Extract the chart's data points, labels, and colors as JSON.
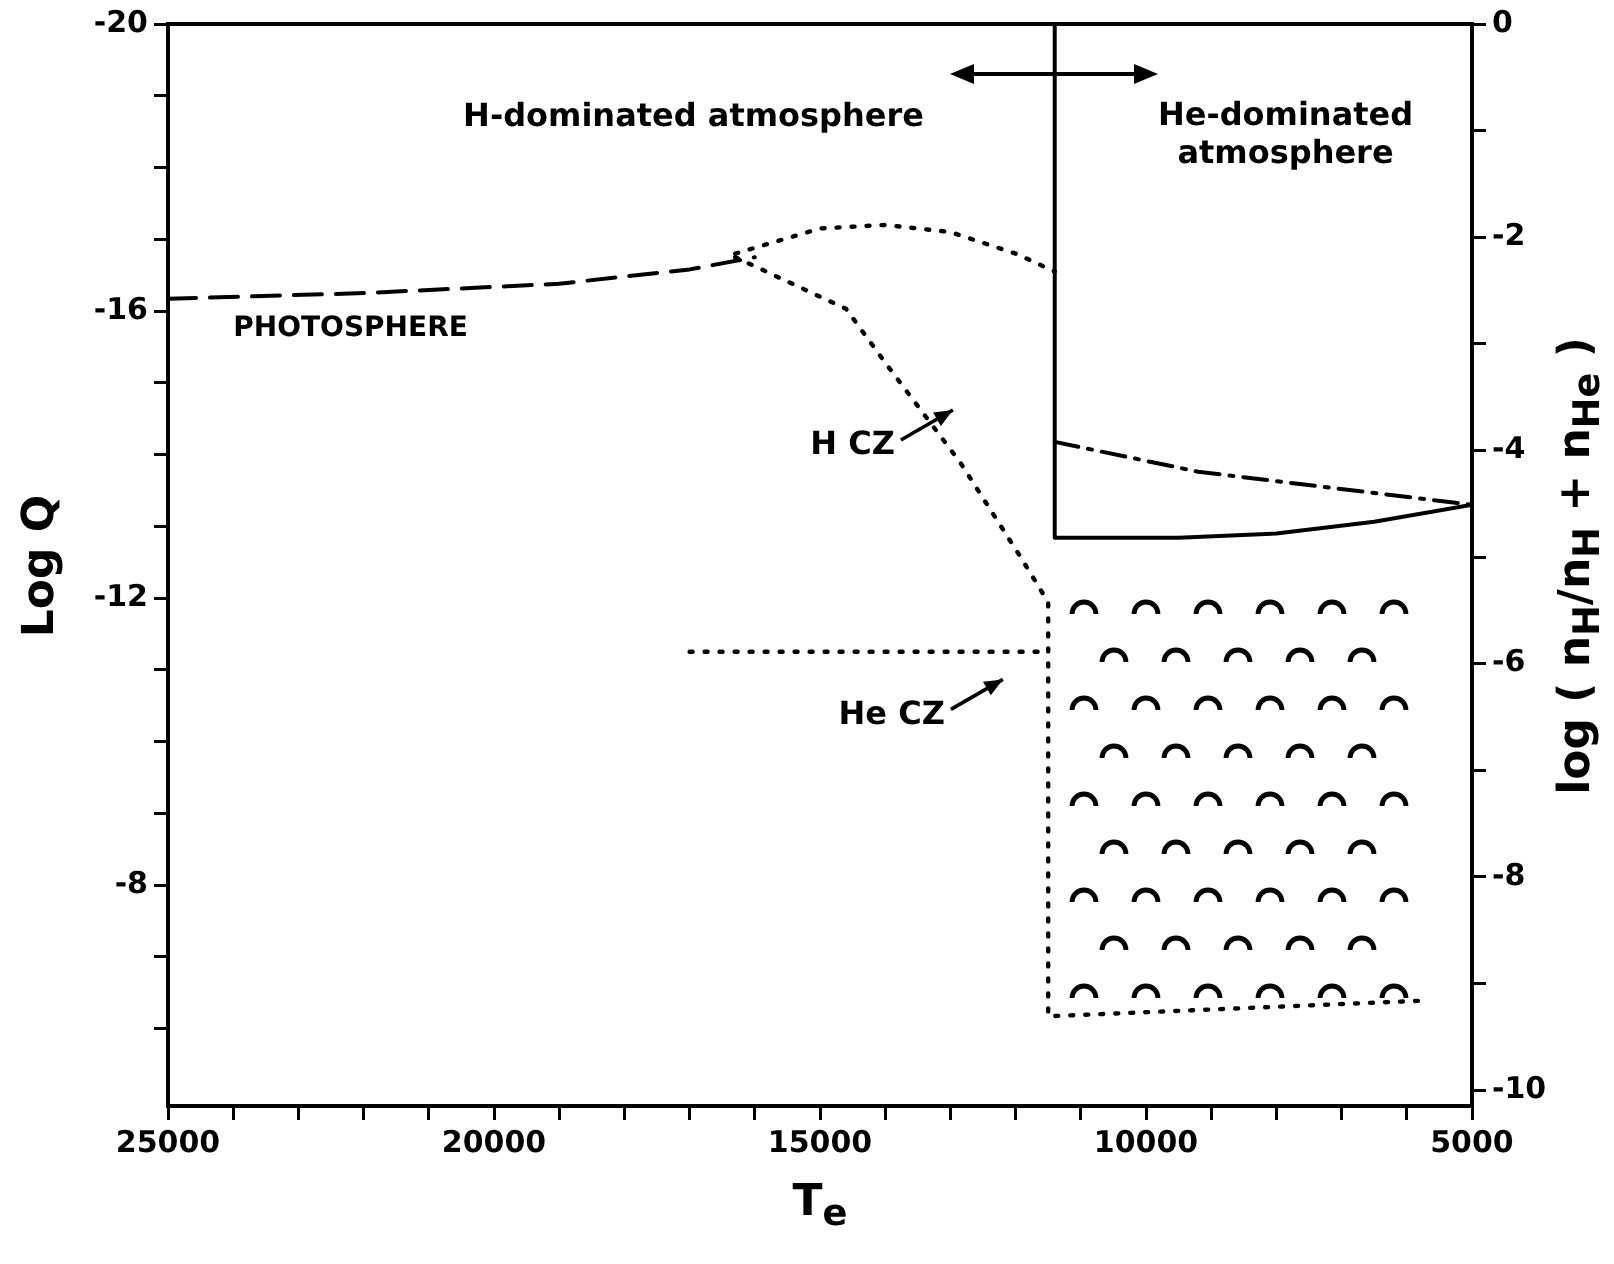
{
  "chart_data": {
    "type": "line",
    "xlabel": "T$_{e}$",
    "ylabel": "Log Q",
    "y2label": "log ( n$_{H}$/n$_{H}$ + n$_{He}$ )",
    "xlim": [
      25000,
      5000
    ],
    "ylim": [
      -4.92,
      -20
    ],
    "y2lim": [
      -10.15,
      0
    ],
    "xticks": [
      25000,
      {
        "value": 24000,
        "label": null
      },
      {
        "value": 23000,
        "label": null
      },
      {
        "value": 22000,
        "label": null
      },
      {
        "value": 21000,
        "label": null
      },
      20000,
      {
        "value": 19000,
        "label": null
      },
      {
        "value": 18000,
        "label": null
      },
      {
        "value": 17000,
        "label": null
      },
      {
        "value": 16000,
        "label": null
      },
      15000,
      {
        "value": 14000,
        "label": null
      },
      {
        "value": 13000,
        "label": null
      },
      {
        "value": 12000,
        "label": null
      },
      {
        "value": 11000,
        "label": null
      },
      10000,
      {
        "value": 9000,
        "label": null
      },
      {
        "value": 8000,
        "label": null
      },
      {
        "value": 7000,
        "label": null
      },
      {
        "value": 6000,
        "label": null
      },
      5000
    ],
    "yticks": [
      -20,
      {
        "value": -19,
        "label": null
      },
      {
        "value": -18,
        "label": null
      },
      {
        "value": -17,
        "label": null
      },
      -16,
      {
        "value": -15,
        "label": null
      },
      {
        "value": -14,
        "label": null
      },
      {
        "value": -13,
        "label": null
      },
      -12,
      {
        "value": -11,
        "label": null
      },
      {
        "value": -10,
        "label": null
      },
      {
        "value": -9,
        "label": null
      },
      -8,
      {
        "value": -7,
        "label": null
      },
      {
        "value": -6,
        "label": null
      }
    ],
    "y2ticks": [
      0,
      {
        "value": -1,
        "label": null
      },
      -2,
      {
        "value": -3,
        "label": null
      },
      -4,
      {
        "value": -5,
        "label": null
      },
      -6,
      {
        "value": -7,
        "label": null
      },
      -8,
      {
        "value": -9,
        "label": null
      },
      -10
    ],
    "grid": false,
    "legend": false,
    "marker": "none",
    "series": [
      {
        "color": "#000000",
        "line_style": "dashed",
        "x": [
          25000,
          22000,
          19000,
          17000,
          16000
        ],
        "values": [
          -16.17,
          -16.25,
          -16.38,
          -16.58,
          -16.75
        ]
      },
      {
        "color": "#000000",
        "line_style": "dotted",
        "x": [
          16300,
          15000,
          14000,
          13000,
          12000,
          11400
        ],
        "values": [
          -16.8,
          -17.15,
          -17.2,
          -17.1,
          -16.8,
          -16.55
        ]
      },
      {
        "color": "#000000",
        "line_style": "dotted",
        "x": [
          16300,
          14600,
          14000,
          12850,
          11930,
          11500,
          11500,
          5700
        ],
        "values": [
          -16.75,
          -16.03,
          -15.28,
          -13.89,
          -12.58,
          -11.94,
          -6.17,
          -6.39
        ]
      },
      {
        "color": "#000000",
        "line_style": "dotted",
        "x": [
          17000,
          11500
        ],
        "values": [
          -11.25,
          -11.25
        ]
      },
      {
        "color": "#000000",
        "line_style": "solid",
        "axis": "y2",
        "x": [
          11400,
          11400,
          9500,
          8000,
          6500,
          5000
        ],
        "values": [
          0,
          -4.82,
          -4.82,
          -4.78,
          -4.67,
          -4.51
        ]
      },
      {
        "color": "#000000",
        "line_style": "dashdot",
        "axis": "y2",
        "x": [
          11400,
          9200,
          5000
        ],
        "values": [
          -3.92,
          -4.2,
          -4.51
        ]
      }
    ],
    "annotations": [
      "PHOTOSPHERE",
      "H-dominated atmosphere",
      "He-dominated\natmosphere",
      "H CZ",
      "He CZ"
    ]
  }
}
